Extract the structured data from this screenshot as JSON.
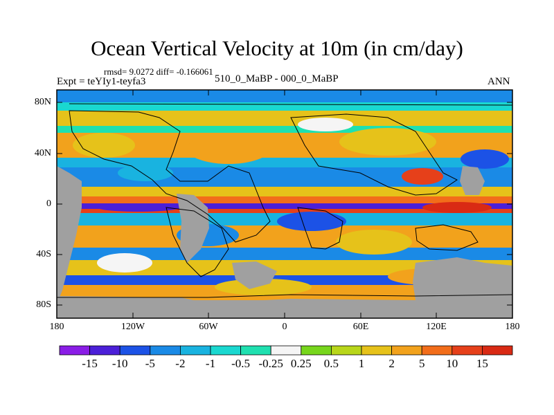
{
  "title": "Ocean Vertical Velocity at 10m (in cm/day)",
  "stats": "rmsd= 9.0272 diff= -0.166061",
  "experiment": "Expt = teYIy1-teyfa3",
  "difference_label": "510_0_MaBP - 000_0_MaBP",
  "season": "ANN",
  "y_axis_labels": [
    "80N",
    "40N",
    "0",
    "40S",
    "80S"
  ],
  "x_axis_labels": [
    "180",
    "120W",
    "60W",
    "0",
    "60E",
    "120E",
    "180"
  ],
  "colorbar": {
    "labels": [
      "-15",
      "-10",
      "-5",
      "-2",
      "-1",
      "-0.5",
      "-0.25",
      "0.25",
      "0.5",
      "1",
      "2",
      "5",
      "10",
      "15"
    ],
    "colors": [
      "#8a1de6",
      "#4b1fd8",
      "#1c52e6",
      "#1a8ae6",
      "#19b3e0",
      "#1ad8d0",
      "#1fe0b0",
      "#f5f5f5",
      "#77d61c",
      "#b8d61a",
      "#e6c21a",
      "#f2a21c",
      "#f26d1a",
      "#e6401a",
      "#d92a14"
    ]
  },
  "land_color": "#a0a0a0"
}
